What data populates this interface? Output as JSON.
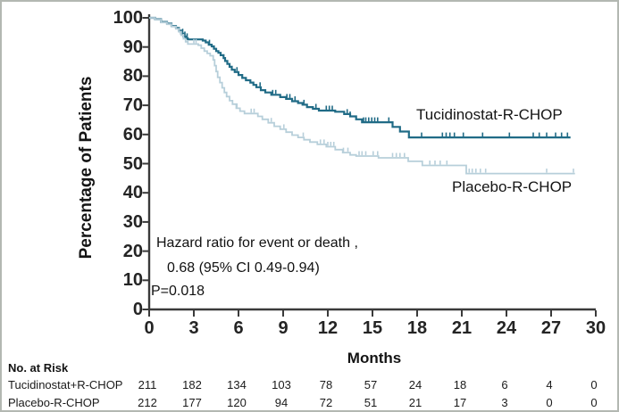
{
  "chart_data": {
    "type": "line",
    "subtype": "kaplan-meier-step",
    "title": "",
    "ylabel": "Percentage of Patients",
    "xlabel": "Months",
    "ylim": [
      0,
      100
    ],
    "xlim": [
      0,
      30
    ],
    "yticks": [
      0,
      10,
      20,
      30,
      40,
      50,
      60,
      70,
      80,
      90,
      100
    ],
    "xticks": [
      0,
      3,
      6,
      9,
      12,
      15,
      18,
      21,
      24,
      27,
      30
    ],
    "grid": "off",
    "legend_position": "inline-labels",
    "axis_color": "#3a3a3a",
    "annotation": [
      "Hazard ratio for event or death ,",
      "0.68 (95% CI 0.49-0.94)",
      "P=0.018"
    ],
    "series": [
      {
        "name": "Tucidinostat-R-CHOP",
        "color": "#206b86",
        "stroke_width": 2.2,
        "points": [
          [
            0,
            100
          ],
          [
            0.4,
            99.5
          ],
          [
            0.8,
            98.6
          ],
          [
            1.2,
            98
          ],
          [
            1.5,
            97.2
          ],
          [
            1.8,
            96.5
          ],
          [
            2.0,
            95.6
          ],
          [
            2.15,
            94.6
          ],
          [
            2.3,
            93.6
          ],
          [
            2.45,
            93
          ],
          [
            2.6,
            92.6
          ],
          [
            3.6,
            92.2
          ],
          [
            3.8,
            91.6
          ],
          [
            4.0,
            90.8
          ],
          [
            4.2,
            90.2
          ],
          [
            4.35,
            89.4
          ],
          [
            4.5,
            88.6
          ],
          [
            4.65,
            88
          ],
          [
            4.8,
            87.2
          ],
          [
            5.0,
            86.2
          ],
          [
            5.1,
            85.2
          ],
          [
            5.25,
            84.2
          ],
          [
            5.4,
            83.2
          ],
          [
            5.55,
            82.2
          ],
          [
            5.75,
            81.4
          ],
          [
            6.0,
            80.4
          ],
          [
            6.25,
            79.4
          ],
          [
            6.5,
            78.6
          ],
          [
            6.8,
            77.8
          ],
          [
            7.0,
            77
          ],
          [
            7.2,
            76.2
          ],
          [
            7.5,
            75.2
          ],
          [
            7.8,
            74.4
          ],
          [
            8.2,
            73.6
          ],
          [
            8.8,
            72.8
          ],
          [
            9.2,
            72.2
          ],
          [
            9.6,
            71.4
          ],
          [
            10.0,
            70.8
          ],
          [
            10.3,
            70.2
          ],
          [
            10.6,
            69.4
          ],
          [
            11.0,
            68.8
          ],
          [
            11.4,
            68.2
          ],
          [
            12.5,
            67.8
          ],
          [
            13.1,
            67
          ],
          [
            13.5,
            66.2
          ],
          [
            13.9,
            65.2
          ],
          [
            14.3,
            64.2
          ],
          [
            16.35,
            62.6
          ],
          [
            16.85,
            61
          ],
          [
            17.45,
            59
          ],
          [
            28.3,
            59
          ]
        ],
        "censor_months": [
          2.25,
          2.4,
          2.55,
          4.05,
          5.9,
          7.45,
          8.3,
          8.5,
          9.25,
          9.45,
          9.8,
          10.4,
          11.2,
          11.9,
          12.1,
          12.3,
          13.3,
          13.5,
          14.4,
          14.55,
          14.75,
          14.95,
          15.15,
          15.35,
          16.1,
          18.3,
          19.7,
          19.95,
          20.2,
          20.5,
          21.1,
          22.4,
          24.2,
          25.8,
          26.2,
          26.7,
          27.3,
          27.7,
          28.1
        ]
      },
      {
        "name": "Placebo-R-CHOP",
        "color": "#b7cfda",
        "stroke_width": 1.8,
        "points": [
          [
            0,
            100
          ],
          [
            0.4,
            99.4
          ],
          [
            0.8,
            98.4
          ],
          [
            1.2,
            97.8
          ],
          [
            1.5,
            97
          ],
          [
            1.8,
            96.2
          ],
          [
            2.0,
            95.2
          ],
          [
            2.15,
            94
          ],
          [
            2.3,
            92.8
          ],
          [
            2.45,
            91.8
          ],
          [
            2.6,
            91
          ],
          [
            3.3,
            90.6
          ],
          [
            3.5,
            89.6
          ],
          [
            3.7,
            88.6
          ],
          [
            3.9,
            87.8
          ],
          [
            4.1,
            87
          ],
          [
            4.3,
            85.6
          ],
          [
            4.4,
            83.6
          ],
          [
            4.5,
            81.6
          ],
          [
            4.6,
            79.6
          ],
          [
            4.75,
            77.8
          ],
          [
            4.9,
            76
          ],
          [
            5.05,
            74.4
          ],
          [
            5.2,
            73
          ],
          [
            5.4,
            71.6
          ],
          [
            5.6,
            70.4
          ],
          [
            5.85,
            69
          ],
          [
            6.1,
            68
          ],
          [
            6.4,
            67.2
          ],
          [
            7.3,
            66.2
          ],
          [
            7.6,
            65.2
          ],
          [
            8.0,
            64
          ],
          [
            8.4,
            62.8
          ],
          [
            8.8,
            61.8
          ],
          [
            9.2,
            60.8
          ],
          [
            9.6,
            59.8
          ],
          [
            10.0,
            59
          ],
          [
            10.4,
            58.2
          ],
          [
            10.8,
            57.4
          ],
          [
            11.3,
            56.6
          ],
          [
            11.9,
            55.8
          ],
          [
            12.5,
            54.8
          ],
          [
            13.0,
            53.8
          ],
          [
            13.5,
            53
          ],
          [
            13.9,
            52.6
          ],
          [
            15.4,
            52
          ],
          [
            17.4,
            50.8
          ],
          [
            18.35,
            49.4
          ],
          [
            21.3,
            46.6
          ],
          [
            28.6,
            46.6
          ]
        ],
        "censor_months": [
          2.3,
          3.0,
          3.15,
          5.9,
          6.85,
          7.05,
          8.2,
          9.05,
          10.35,
          11.5,
          11.75,
          12.0,
          12.2,
          12.4,
          13.05,
          13.35,
          14.1,
          14.3,
          14.55,
          15.05,
          15.35,
          16.35,
          16.6,
          16.85,
          17.15,
          18.85,
          19.2,
          19.55,
          20.0,
          21.5,
          21.7,
          21.95,
          22.25,
          22.6,
          26.7,
          28.5
        ]
      }
    ],
    "risk_table": {
      "title": "No. at Risk",
      "months": [
        0,
        3,
        6,
        9,
        12,
        15,
        18,
        21,
        24,
        27,
        30
      ],
      "rows": [
        {
          "label": "Tucidinostat+R-CHOP",
          "values": [
            211,
            182,
            134,
            103,
            78,
            57,
            24,
            18,
            6,
            4,
            0
          ]
        },
        {
          "label": "Placebo-R-CHOP",
          "values": [
            212,
            177,
            120,
            94,
            72,
            51,
            21,
            17,
            3,
            0,
            0
          ]
        }
      ]
    }
  }
}
